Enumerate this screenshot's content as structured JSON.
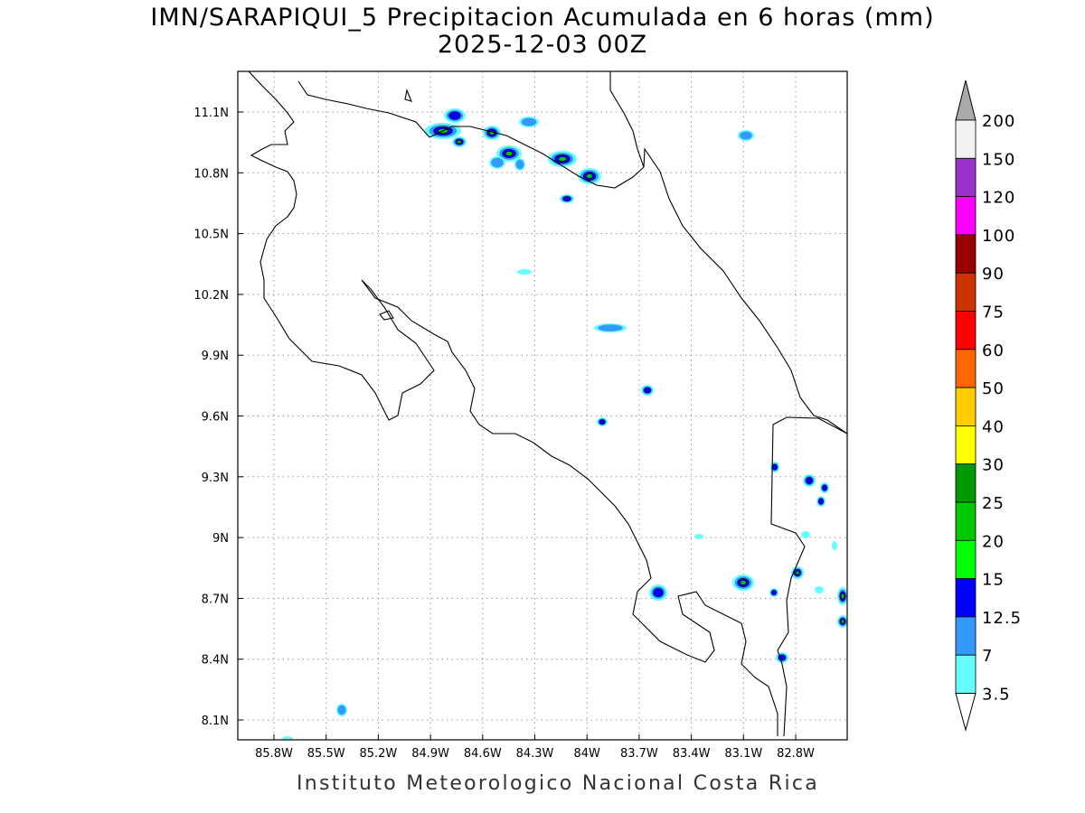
{
  "title": "IMN/SARAPIQUI_5 Precipitacion Acumulada en 6 horas (mm)",
  "subtitle": "2025-12-03 00Z",
  "footer": "Instituto Meteorologico Nacional Costa Rica",
  "lon_ticks": [
    "85.8W",
    "85.5W",
    "85.2W",
    "84.9W",
    "84.6W",
    "84.3W",
    "84W",
    "83.7W",
    "83.4W",
    "83.1W",
    "82.8W"
  ],
  "lat_ticks": [
    "11.1N",
    "10.8N",
    "10.5N",
    "10.2N",
    "9.9N",
    "9.6N",
    "9.3N",
    "9N",
    "8.7N",
    "8.4N",
    "8.1N"
  ],
  "colorbar": {
    "labels": [
      "200",
      "150",
      "120",
      "100",
      "90",
      "75",
      "60",
      "50",
      "40",
      "30",
      "25",
      "20",
      "15",
      "12.5",
      "7",
      "3.5"
    ],
    "colors": [
      "#f2f2f2",
      "#9933cc",
      "#ff00ff",
      "#990000",
      "#cc3300",
      "#ff0000",
      "#ff6600",
      "#ffcc00",
      "#ffff00",
      "#009900",
      "#00c800",
      "#00ff00",
      "#0000ff",
      "#3399ff",
      "#66ffff"
    ],
    "over_color": "#aaaaaa",
    "under_color": "#ffffff"
  }
}
